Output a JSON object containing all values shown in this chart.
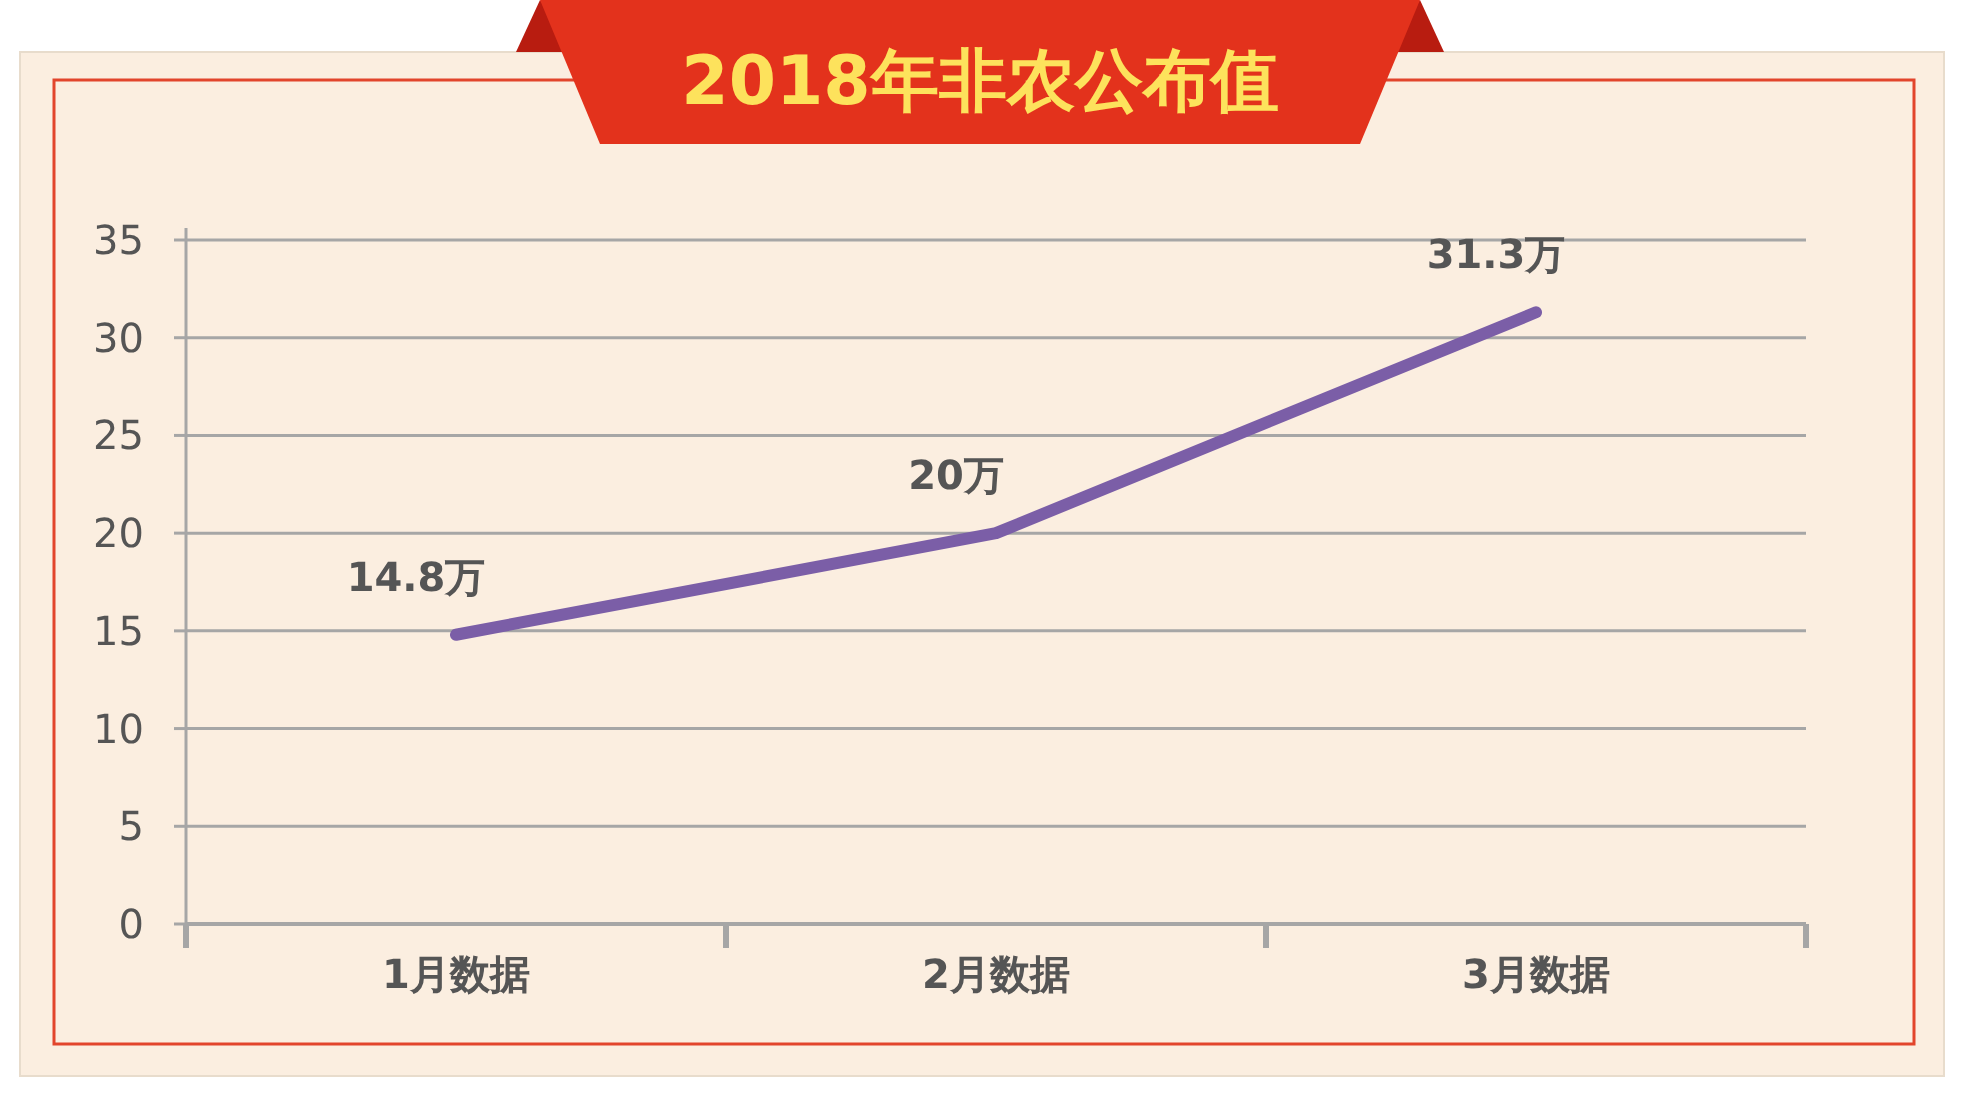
{
  "chart_data": {
    "type": "line",
    "title": "2018年非农公布值",
    "categories": [
      "1月数据",
      "2月数据",
      "3月数据"
    ],
    "values": [
      14.8,
      20,
      31.3
    ],
    "value_labels": [
      "14.8万",
      "20万",
      "31.3万"
    ],
    "color": "#7b5ea7",
    "ylim": [
      0,
      35
    ],
    "yticks": [
      0,
      5,
      10,
      15,
      20,
      25,
      30,
      35
    ],
    "grid": "y"
  }
}
